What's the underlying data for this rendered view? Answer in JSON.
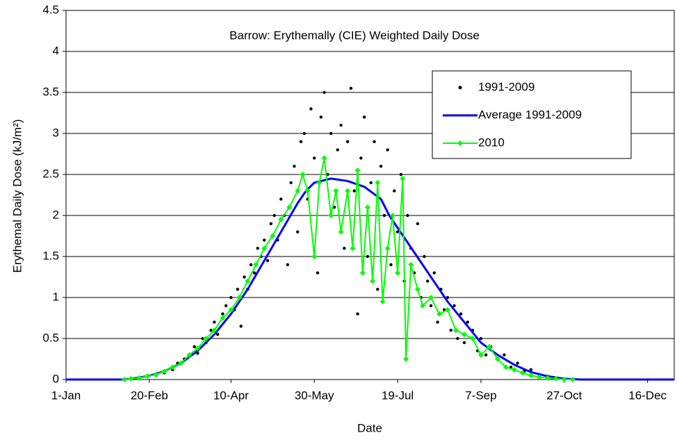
{
  "chart_data": {
    "type": "scatter-line",
    "title": "Barrow: Erythemally (CIE) Weighted Daily Dose",
    "x_label": "Date",
    "y_label": "Erythemal Daily Dose (kJ/m²)",
    "xlim": [
      1,
      366
    ],
    "xticks": [
      {
        "value": 1,
        "label": "1-Jan"
      },
      {
        "value": 51,
        "label": "20-Feb"
      },
      {
        "value": 100,
        "label": "10-Apr"
      },
      {
        "value": 150,
        "label": "30-May"
      },
      {
        "value": 200,
        "label": "19-Jul"
      },
      {
        "value": 250,
        "label": "7-Sep"
      },
      {
        "value": 300,
        "label": "27-Oct"
      },
      {
        "value": 350,
        "label": "16-Dec"
      }
    ],
    "ylim": [
      0,
      4.5
    ],
    "yticks": [
      0,
      0.5,
      1,
      1.5,
      2,
      2.5,
      3,
      3.5,
      4,
      4.5
    ],
    "grid": true,
    "legend": "upper right",
    "series": [
      {
        "name": "1991-2009",
        "color": "#000000",
        "kind": "points",
        "x": [
          45,
          55,
          60,
          65,
          68,
          72,
          75,
          78,
          80,
          83,
          85,
          88,
          90,
          92,
          95,
          97,
          100,
          102,
          104,
          106,
          108,
          110,
          112,
          114,
          116,
          118,
          120,
          122,
          124,
          126,
          128,
          130,
          132,
          134,
          136,
          138,
          140,
          142,
          144,
          146,
          148,
          150,
          152,
          154,
          156,
          158,
          160,
          162,
          164,
          166,
          168,
          170,
          172,
          174,
          176,
          178,
          180,
          182,
          184,
          186,
          188,
          190,
          192,
          194,
          196,
          198,
          200,
          202,
          204,
          206,
          208,
          210,
          212,
          214,
          216,
          218,
          220,
          222,
          224,
          226,
          228,
          230,
          232,
          234,
          236,
          238,
          240,
          242,
          245,
          248,
          250,
          253,
          256,
          260,
          264,
          268,
          272,
          276,
          280,
          285,
          290,
          295,
          300
        ],
        "values": [
          0.01,
          0.05,
          0.08,
          0.12,
          0.2,
          0.25,
          0.3,
          0.4,
          0.32,
          0.5,
          0.45,
          0.6,
          0.7,
          0.55,
          0.8,
          0.9,
          1.0,
          0.85,
          1.1,
          0.65,
          1.25,
          1.1,
          1.4,
          1.3,
          1.6,
          1.5,
          1.7,
          1.45,
          1.9,
          2.0,
          1.7,
          2.2,
          2.0,
          1.4,
          2.4,
          2.6,
          1.8,
          2.9,
          3.0,
          2.2,
          3.3,
          2.7,
          1.3,
          3.2,
          3.5,
          2.5,
          3.0,
          2.1,
          2.8,
          3.1,
          1.6,
          2.9,
          3.55,
          2.3,
          0.8,
          2.7,
          3.2,
          1.5,
          2.4,
          2.9,
          1.1,
          2.6,
          2.0,
          2.8,
          1.4,
          2.3,
          1.8,
          2.5,
          1.2,
          2.0,
          1.6,
          1.3,
          1.9,
          1.0,
          1.5,
          1.2,
          0.9,
          1.3,
          0.7,
          1.1,
          0.85,
          1.0,
          0.6,
          0.9,
          0.5,
          0.8,
          0.45,
          0.7,
          0.6,
          0.35,
          0.5,
          0.3,
          0.4,
          0.25,
          0.3,
          0.15,
          0.2,
          0.1,
          0.12,
          0.06,
          0.04,
          0.02,
          0.01
        ]
      },
      {
        "name": "Average 1991-2009",
        "color": "#0000ff",
        "kind": "line",
        "x": [
          1,
          35,
          40,
          50,
          60,
          70,
          80,
          90,
          100,
          110,
          120,
          130,
          140,
          145,
          150,
          160,
          170,
          180,
          190,
          195,
          200,
          210,
          220,
          230,
          240,
          250,
          260,
          270,
          280,
          290,
          300,
          310,
          366
        ],
        "values": [
          0,
          0,
          0.01,
          0.04,
          0.1,
          0.2,
          0.35,
          0.55,
          0.8,
          1.1,
          1.45,
          1.8,
          2.15,
          2.3,
          2.4,
          2.45,
          2.42,
          2.35,
          2.2,
          2.0,
          1.85,
          1.55,
          1.25,
          0.95,
          0.7,
          0.45,
          0.3,
          0.18,
          0.09,
          0.04,
          0.01,
          0,
          0
        ]
      },
      {
        "name": "2010",
        "color": "#00ff00",
        "kind": "line-diamond",
        "x": [
          36,
          40,
          45,
          50,
          55,
          60,
          65,
          70,
          75,
          80,
          85,
          90,
          95,
          100,
          105,
          110,
          115,
          120,
          125,
          130,
          135,
          140,
          143,
          146,
          150,
          153,
          156,
          160,
          163,
          166,
          170,
          173,
          176,
          179,
          182,
          185,
          188,
          191,
          194,
          197,
          200,
          203,
          205,
          208,
          212,
          215,
          220,
          225,
          230,
          235,
          240,
          245,
          250,
          255,
          260,
          265,
          270,
          275,
          280,
          285,
          290,
          295,
          300,
          305
        ],
        "values": [
          0,
          0.01,
          0.02,
          0.04,
          0.06,
          0.1,
          0.15,
          0.2,
          0.3,
          0.38,
          0.5,
          0.6,
          0.75,
          0.85,
          1.0,
          1.2,
          1.4,
          1.6,
          1.75,
          1.95,
          2.1,
          2.3,
          2.5,
          2.3,
          1.5,
          2.4,
          2.7,
          2.0,
          2.3,
          1.8,
          2.3,
          1.6,
          2.55,
          1.3,
          2.1,
          1.2,
          2.4,
          0.95,
          1.6,
          2.0,
          1.3,
          2.45,
          0.25,
          1.4,
          1.1,
          0.9,
          1.0,
          0.8,
          0.85,
          0.6,
          0.55,
          0.5,
          0.3,
          0.4,
          0.25,
          0.15,
          0.12,
          0.08,
          0.05,
          0.03,
          0.02,
          0.01,
          0,
          0
        ]
      }
    ]
  }
}
